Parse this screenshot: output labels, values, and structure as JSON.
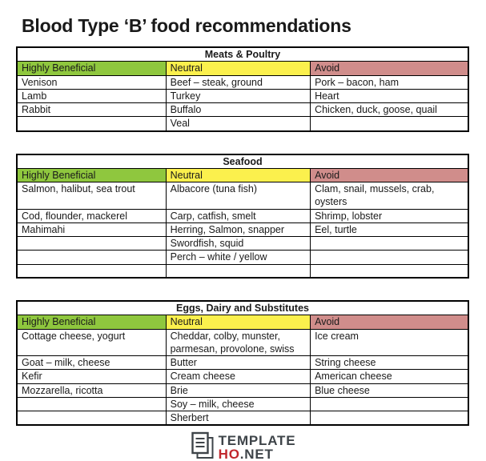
{
  "document": {
    "title": "Blood Type ‘B’ food recommendations"
  },
  "colors": {
    "highly_beneficial": "#8FC73E",
    "neutral": "#FBF04D",
    "avoid": "#D08D8B",
    "text": "#1A1A1A",
    "logo_dark": "#3E4449",
    "logo_red": "#C1272D"
  },
  "tables": [
    {
      "caption": "Meats & Poultry",
      "columns": [
        "Highly Beneficial",
        "Neutral",
        "Avoid"
      ],
      "rows": [
        [
          "Venison",
          "Beef – steak, ground",
          "Pork – bacon, ham"
        ],
        [
          "Lamb",
          "Turkey",
          "Heart"
        ],
        [
          "Rabbit",
          "Buffalo",
          "Chicken, duck, goose, quail"
        ],
        [
          "",
          "Veal",
          ""
        ]
      ]
    },
    {
      "caption": "Seafood",
      "columns": [
        "Highly Beneficial",
        "Neutral",
        "Avoid"
      ],
      "rows": [
        [
          "Salmon, halibut, sea trout",
          "Albacore (tuna fish)",
          "Clam, snail, mussels, crab, oysters"
        ],
        [
          "Cod, flounder, mackerel",
          "Carp, catfish, smelt",
          "Shrimp, lobster"
        ],
        [
          "Mahimahi",
          "Herring, Salmon, snapper",
          "Eel, turtle"
        ],
        [
          "",
          "Swordfish, squid",
          ""
        ],
        [
          "",
          "Perch – white / yellow",
          ""
        ],
        [
          "",
          "",
          ""
        ]
      ]
    },
    {
      "caption": "Eggs, Dairy and Substitutes",
      "columns": [
        "Highly Beneficial",
        "Neutral",
        "Avoid"
      ],
      "rows": [
        [
          "Cottage cheese, yogurt",
          "Cheddar, colby, munster, parmesan, provolone, swiss",
          "Ice cream"
        ],
        [
          "Goat – milk, cheese",
          "Butter",
          "String cheese"
        ],
        [
          "Kefir",
          "Cream cheese",
          "American cheese"
        ],
        [
          "Mozzarella, ricotta",
          "Brie",
          "Blue cheese"
        ],
        [
          "",
          "Soy – milk, cheese",
          ""
        ],
        [
          "",
          "Sherbert",
          ""
        ]
      ]
    }
  ],
  "footer": {
    "logo_line1": "TEMPLATE",
    "logo_line2_red": "HO",
    "logo_line2_dark": ".NET"
  }
}
